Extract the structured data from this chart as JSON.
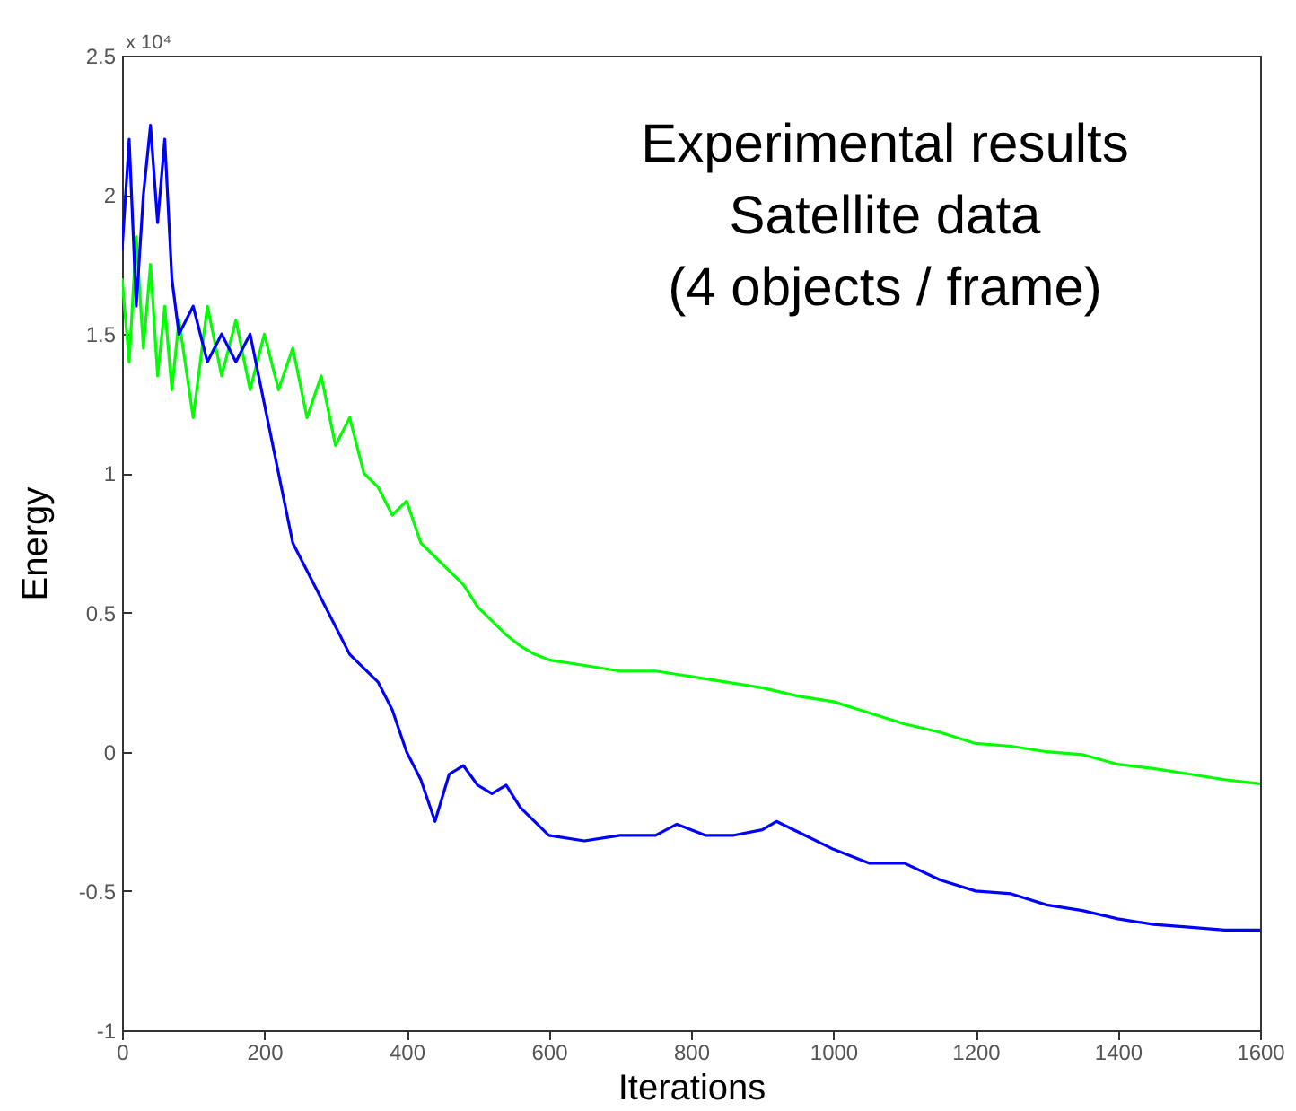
{
  "chart_data": {
    "type": "line",
    "xlabel": "Iterations",
    "ylabel": "Energy",
    "annotations": [
      "x 10⁴",
      "Experimental results",
      "Satellite data",
      "(4 objects / frame)"
    ],
    "xlim": [
      0,
      1600
    ],
    "xticks": [
      0,
      200,
      400,
      600,
      800,
      1000,
      1200,
      1400,
      1600
    ],
    "ylim": [
      -1,
      2.5
    ],
    "yticks": [
      -1,
      -0.5,
      0,
      0.5,
      1,
      1.5,
      2,
      2.5
    ],
    "grid": false,
    "line_style": "solid",
    "marker": "none",
    "series": [
      {
        "color": "#00ff00",
        "x": [
          0,
          10,
          20,
          30,
          40,
          50,
          60,
          70,
          80,
          100,
          120,
          140,
          160,
          180,
          200,
          220,
          240,
          260,
          280,
          300,
          320,
          340,
          360,
          380,
          400,
          420,
          440,
          460,
          480,
          500,
          520,
          540,
          560,
          580,
          600,
          650,
          700,
          750,
          800,
          850,
          900,
          950,
          1000,
          1050,
          1100,
          1150,
          1200,
          1250,
          1300,
          1350,
          1400,
          1450,
          1500,
          1550,
          1600
        ],
        "values": [
          1.7,
          1.4,
          1.85,
          1.45,
          1.75,
          1.35,
          1.6,
          1.3,
          1.55,
          1.2,
          1.6,
          1.35,
          1.55,
          1.3,
          1.5,
          1.3,
          1.45,
          1.2,
          1.35,
          1.1,
          1.2,
          1.0,
          0.95,
          0.85,
          0.9,
          0.75,
          0.7,
          0.65,
          0.6,
          0.52,
          0.47,
          0.42,
          0.38,
          0.35,
          0.33,
          0.31,
          0.29,
          0.29,
          0.27,
          0.25,
          0.23,
          0.2,
          0.18,
          0.14,
          0.1,
          0.07,
          0.03,
          0.02,
          0.0,
          -0.01,
          -0.045,
          -0.06,
          -0.08,
          -0.1,
          -0.115
        ]
      },
      {
        "color": "#0000ff",
        "x": [
          0,
          10,
          20,
          30,
          40,
          50,
          60,
          70,
          80,
          100,
          120,
          140,
          160,
          180,
          200,
          220,
          240,
          260,
          280,
          300,
          320,
          340,
          360,
          380,
          400,
          420,
          440,
          460,
          480,
          500,
          520,
          540,
          560,
          580,
          600,
          650,
          700,
          750,
          780,
          820,
          860,
          900,
          920,
          960,
          1000,
          1050,
          1100,
          1150,
          1200,
          1250,
          1300,
          1350,
          1400,
          1450,
          1500,
          1550,
          1600
        ],
        "values": [
          1.8,
          2.2,
          1.6,
          2.0,
          2.25,
          1.9,
          2.2,
          1.7,
          1.5,
          1.6,
          1.4,
          1.5,
          1.4,
          1.5,
          1.25,
          1.0,
          0.75,
          0.65,
          0.55,
          0.45,
          0.35,
          0.3,
          0.25,
          0.15,
          0.0,
          -0.1,
          -0.25,
          -0.08,
          -0.05,
          -0.12,
          -0.15,
          -0.12,
          -0.2,
          -0.25,
          -0.3,
          -0.32,
          -0.3,
          -0.3,
          -0.26,
          -0.3,
          -0.3,
          -0.28,
          -0.25,
          -0.3,
          -0.35,
          -0.4,
          -0.4,
          -0.46,
          -0.5,
          -0.51,
          -0.55,
          -0.57,
          -0.6,
          -0.62,
          -0.63,
          -0.64,
          -0.64
        ]
      }
    ]
  }
}
